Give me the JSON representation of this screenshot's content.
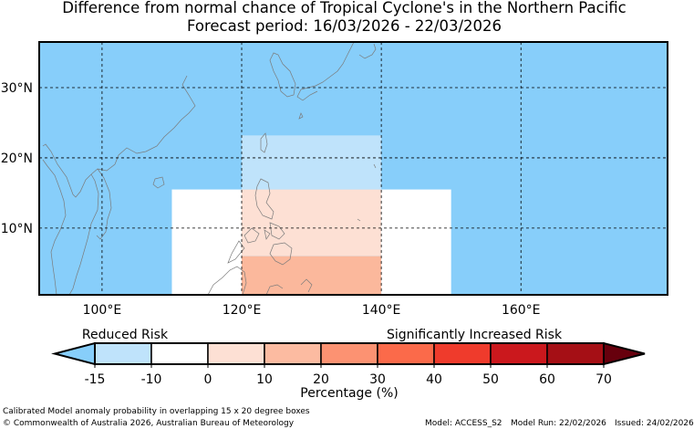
{
  "title_line1": "Difference from normal chance of Tropical Cyclone's in the Northern Pacific",
  "title_line2": "Forecast period: 16/03/2026 - 22/03/2026",
  "map": {
    "ocean_color": "#87cefa",
    "lon_ticks": [
      {
        "lon": 100,
        "label": "100°E"
      },
      {
        "lon": 120,
        "label": "120°E"
      },
      {
        "lon": 140,
        "label": "140°E"
      },
      {
        "lon": 160,
        "label": "160°E"
      }
    ],
    "lat_ticks": [
      {
        "lat": 10,
        "label": "10°N"
      },
      {
        "lat": 20,
        "label": "20°N"
      },
      {
        "lat": 30,
        "label": "30°N"
      }
    ],
    "boxes": [
      {
        "name": "box-white-west",
        "lon0": 110,
        "lon1": 120,
        "lat0": 0,
        "lat1": 15.5,
        "color": "#ffffff",
        "range": "-10 to 0"
      },
      {
        "name": "box-white-east",
        "lon0": 140,
        "lon1": 150,
        "lat0": 0,
        "lat1": 15.5,
        "color": "#ffffff",
        "range": "-10 to 0"
      },
      {
        "name": "box-lightblue-north",
        "lon0": 120,
        "lon1": 140,
        "lat0": 15.5,
        "lat1": 23.2,
        "color": "#bfe3fb",
        "range": "-15 to -10"
      },
      {
        "name": "box-lightpink-center",
        "lon0": 120,
        "lon1": 140,
        "lat0": 6,
        "lat1": 15.5,
        "color": "#fde0d4",
        "range": "0 to 10"
      },
      {
        "name": "box-salmon-south",
        "lon0": 120,
        "lon1": 140,
        "lat0": 0,
        "lat1": 6,
        "color": "#fbb89c",
        "range": "10 to 20"
      }
    ]
  },
  "colorbar": {
    "label_left": "Reduced Risk",
    "label_right": "Significantly Increased Risk",
    "under_color": "#87cefa",
    "over_color": "#67000d",
    "colors": [
      "#bfe3fb",
      "#ffffff",
      "#fde0d4",
      "#fcbba1",
      "#fc9272",
      "#fb6a4a",
      "#ef3b2c",
      "#cb181d",
      "#a50f15"
    ],
    "ticks": [
      "-15",
      "-10",
      "0",
      "10",
      "20",
      "30",
      "40",
      "50",
      "60",
      "70"
    ],
    "axis_label": "Percentage (%)"
  },
  "footer": {
    "description": "Calibrated Model anomaly probability in overlapping 15 x 20 degree boxes",
    "copyright": "© Commonwealth of Australia 2026, Australian Bureau of Meteorology",
    "model": "Model: ACCESS_S2",
    "model_run": "Model Run: 22/02/2026",
    "issued": "Issued: 24/02/2026"
  }
}
